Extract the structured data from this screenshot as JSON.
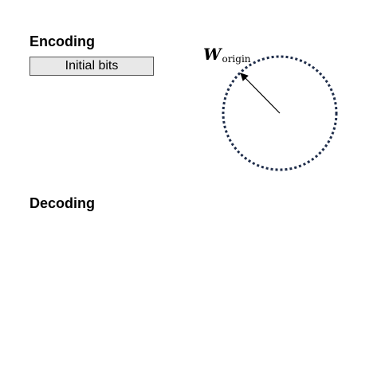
{
  "encoding": {
    "heading": "Encoding",
    "initial_bits_label": "Initial bits"
  },
  "decoding": {
    "heading": "Decoding"
  },
  "circle": {
    "radius_symbol": "W",
    "radius_subscript": "origin",
    "stroke_color": "#1f2d4a",
    "style": "dotted"
  },
  "arrow": {
    "color": "#000000"
  }
}
